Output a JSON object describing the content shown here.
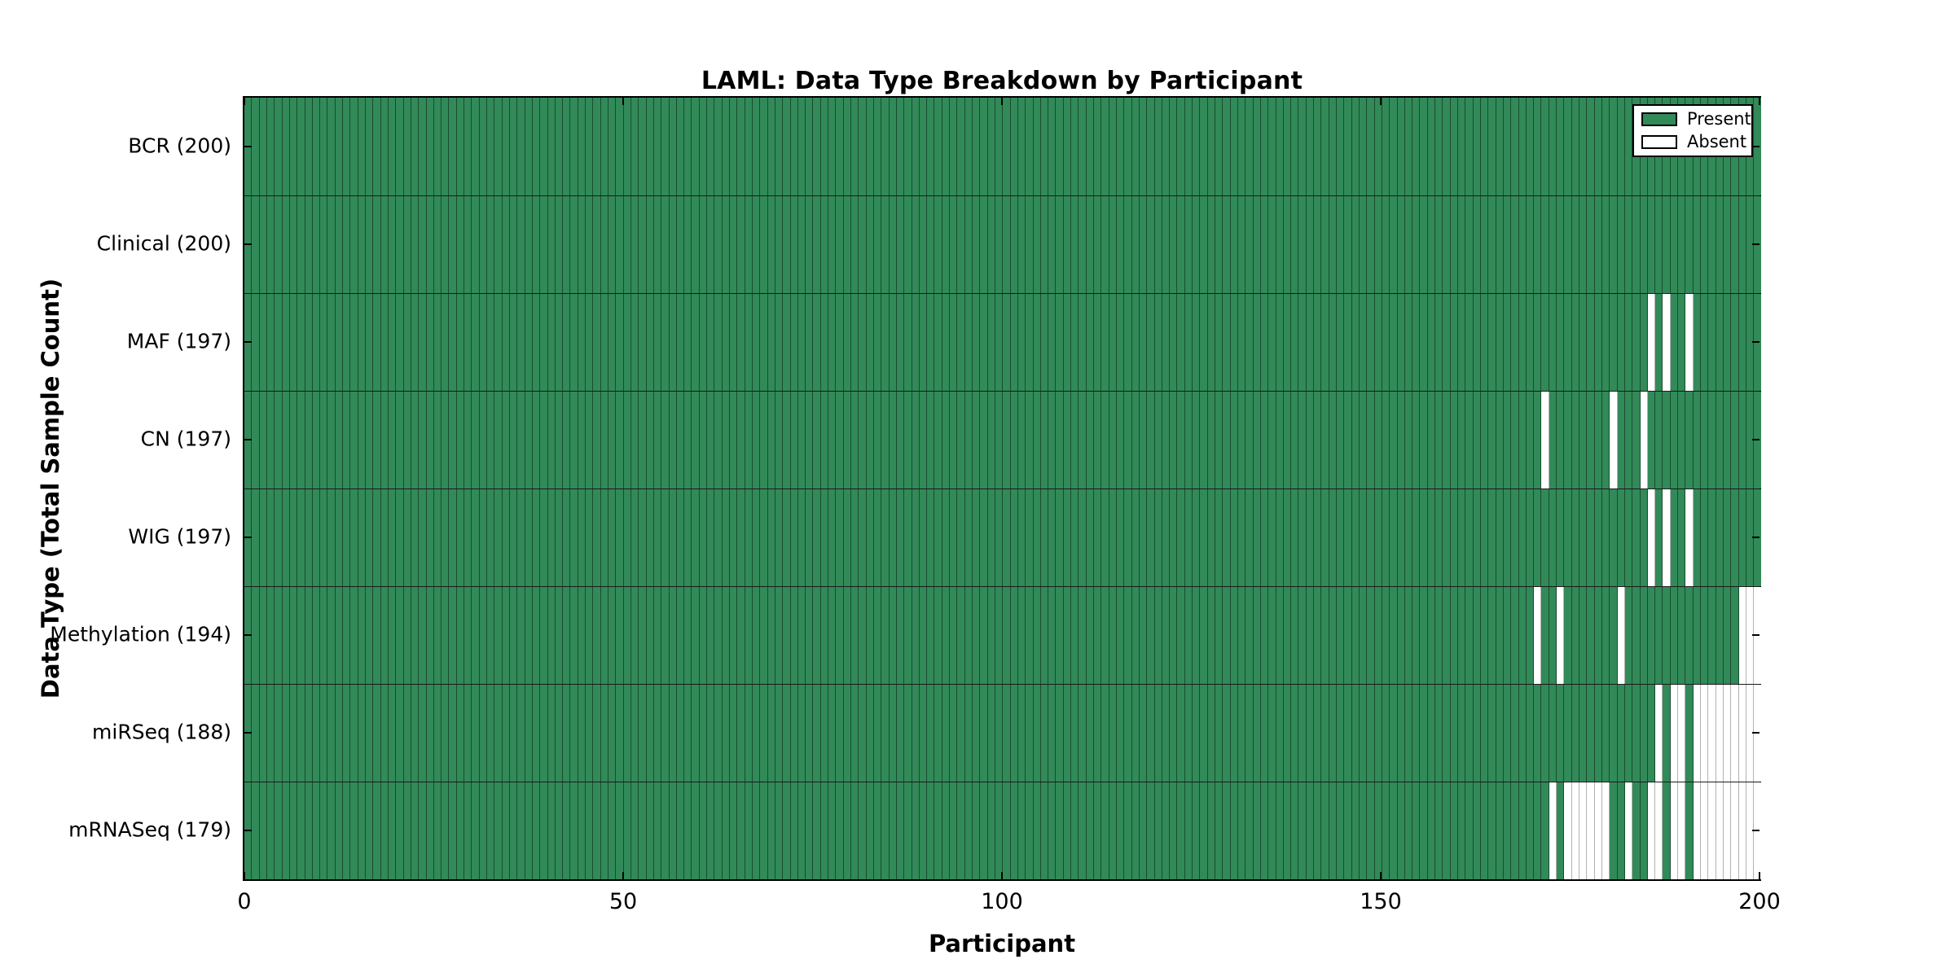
{
  "figure": {
    "title": "LAML: Data Type Breakdown by Participant",
    "xlabel": "Participant",
    "ylabel": "Data Type (Total Sample Count)"
  },
  "legend": {
    "present_label": "Present",
    "absent_label": "Absent"
  },
  "chart_data": {
    "type": "heatmap",
    "title": "LAML: Data Type Breakdown by Participant",
    "xlabel": "Participant",
    "ylabel": "Data Type (Total Sample Count)",
    "n_participants": 200,
    "x_range": [
      0,
      200
    ],
    "x_ticks": [
      0,
      50,
      100,
      150,
      200
    ],
    "x_tick_labels": [
      "0",
      "50",
      "100",
      "150",
      "200"
    ],
    "grid": false,
    "legend_position": "upper-right-inside",
    "legend_entries": [
      {
        "label": "Present",
        "value": "present"
      },
      {
        "label": "Absent",
        "value": "absent"
      }
    ],
    "colors": {
      "present": "#318a58",
      "absent": "#ffffff",
      "cell_edge_present": "rgba(0,0,0,0.45)",
      "cell_edge_absent": "rgba(0,0,0,0.30)",
      "row_separator": "#1b1b1b",
      "axis": "#000000"
    },
    "rows": [
      {
        "label": "BCR (200)",
        "data_type": "BCR",
        "present_count": 200,
        "absent_participants": []
      },
      {
        "label": "Clinical (200)",
        "data_type": "Clinical",
        "present_count": 200,
        "absent_participants": []
      },
      {
        "label": "MAF (197)",
        "data_type": "MAF",
        "present_count": 197,
        "absent_participants": [
          185,
          187,
          190
        ]
      },
      {
        "label": "CN (197)",
        "data_type": "CN",
        "present_count": 197,
        "absent_participants": [
          171,
          180,
          184
        ]
      },
      {
        "label": "WIG (197)",
        "data_type": "WIG",
        "present_count": 197,
        "absent_participants": [
          185,
          187,
          190
        ]
      },
      {
        "label": "Methylation (194)",
        "data_type": "Methylation",
        "present_count": 194,
        "absent_participants": [
          170,
          173,
          181,
          197,
          198,
          199
        ]
      },
      {
        "label": "miRSeq (188)",
        "data_type": "miRSeq",
        "present_count": 188,
        "absent_participants": [
          186,
          188,
          189,
          191,
          192,
          193,
          194,
          195,
          196,
          197,
          198,
          199
        ]
      },
      {
        "label": "mRNASeq (179)",
        "data_type": "mRNASeq",
        "present_count": 179,
        "absent_participants": [
          172,
          174,
          175,
          176,
          177,
          178,
          179,
          182,
          185,
          186,
          188,
          189,
          191,
          192,
          193,
          194,
          195,
          196,
          197,
          198,
          199
        ]
      }
    ]
  }
}
